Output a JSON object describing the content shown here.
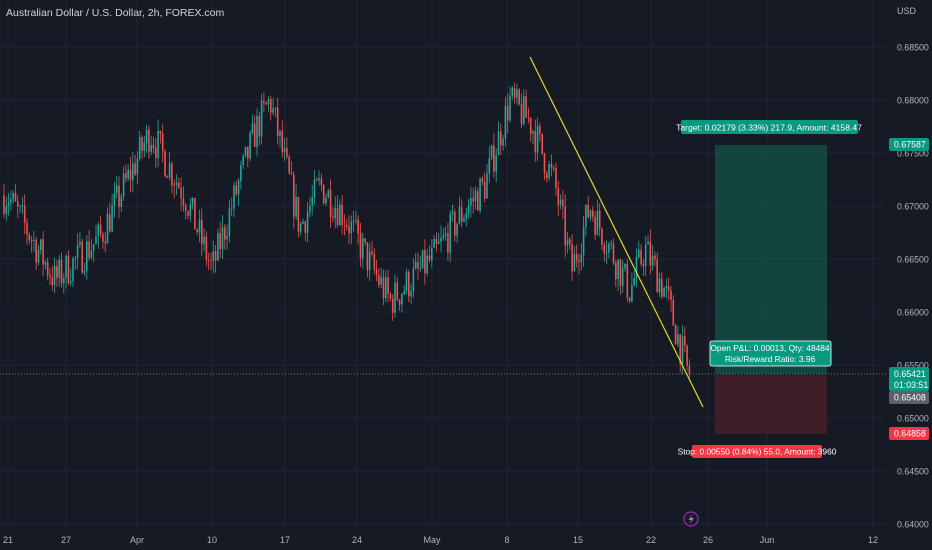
{
  "header": {
    "title": "Australian Dollar / U.S. Dollar, 2h, FOREX.com"
  },
  "price_axis": {
    "currency": "USD",
    "ticks": [
      "0.68500",
      "0.68000",
      "0.67500",
      "0.67000",
      "0.66500",
      "0.66000",
      "0.65500",
      "0.65000",
      "0.64500",
      "0.64000"
    ],
    "target_price_tag": "0.67587",
    "last_price_tag": "0.65421",
    "countdown": "01:03:51",
    "entry_price_tag": "0.65408",
    "stop_price_tag": "0.64858"
  },
  "time_axis": {
    "ticks": [
      "21",
      "27",
      "Apr",
      "10",
      "17",
      "24",
      "May",
      "8",
      "15",
      "22",
      "26",
      "Jun",
      "12"
    ]
  },
  "position": {
    "target_label": "Target: 0.02179 (3.33%) 217.9, Amount: 4158.47",
    "open_pl_label": "Open P&L: 0.00013, Qty: 48484",
    "risk_reward_label": "Risk/Reward Ratio: 3.96",
    "stop_label": "Stop: 0.00550 (0.84%) 55.0, Amount: 3960"
  },
  "colors": {
    "background": "#161a25",
    "bull": "#26a69a",
    "bear": "#ef5350",
    "trendline": "#e6d62a",
    "target_zone": "#13534a",
    "stop_zone": "#4a1e27",
    "target_tag": "#089981",
    "stop_tag": "#f23645",
    "text": "#b2b5be"
  },
  "chart_data": {
    "type": "candlestick",
    "title": "Australian Dollar / U.S. Dollar, 2h, FOREX.com",
    "x_ticks": [
      "21",
      "27",
      "Apr",
      "10",
      "17",
      "24",
      "May",
      "8",
      "15",
      "22",
      "26",
      "Jun",
      "12"
    ],
    "y_ticks": [
      0.685,
      0.68,
      0.675,
      0.67,
      0.665,
      0.66,
      0.655,
      0.65,
      0.645,
      0.64
    ],
    "ylim": [
      0.6398,
      0.6885
    ],
    "grid": true,
    "anchors": [
      {
        "x": "21",
        "price": 0.671
      },
      {
        "x": "25",
        "price": 0.663
      },
      {
        "x": "29",
        "price": 0.667
      },
      {
        "x": "Apr",
        "price": 0.677
      },
      {
        "x": "6",
        "price": 0.671
      },
      {
        "x": "10",
        "price": 0.664
      },
      {
        "x": "14",
        "price": 0.677
      },
      {
        "x": "16",
        "price": 0.68
      },
      {
        "x": "19",
        "price": 0.668
      },
      {
        "x": "21",
        "price": 0.672
      },
      {
        "x": "25",
        "price": 0.669
      },
      {
        "x": "28",
        "price": 0.661
      },
      {
        "x": "May",
        "price": 0.665
      },
      {
        "x": "4",
        "price": 0.669
      },
      {
        "x": "6",
        "price": 0.672
      },
      {
        "x": "8",
        "price": 0.68
      },
      {
        "x": "10",
        "price": 0.678
      },
      {
        "x": "12",
        "price": 0.672
      },
      {
        "x": "14",
        "price": 0.664
      },
      {
        "x": "17",
        "price": 0.67
      },
      {
        "x": "20",
        "price": 0.662
      },
      {
        "x": "21",
        "price": 0.666
      },
      {
        "x": "23",
        "price": 0.662
      },
      {
        "x": "25",
        "price": 0.6542
      }
    ],
    "last_price": 0.65421,
    "trendline": {
      "from": {
        "price": 0.6843
      },
      "to": {
        "price": 0.651
      }
    },
    "long_position": {
      "entry": 0.65408,
      "target": 0.67587,
      "stop": 0.64858,
      "qty": 48484,
      "risk_reward": 3.96
    }
  }
}
